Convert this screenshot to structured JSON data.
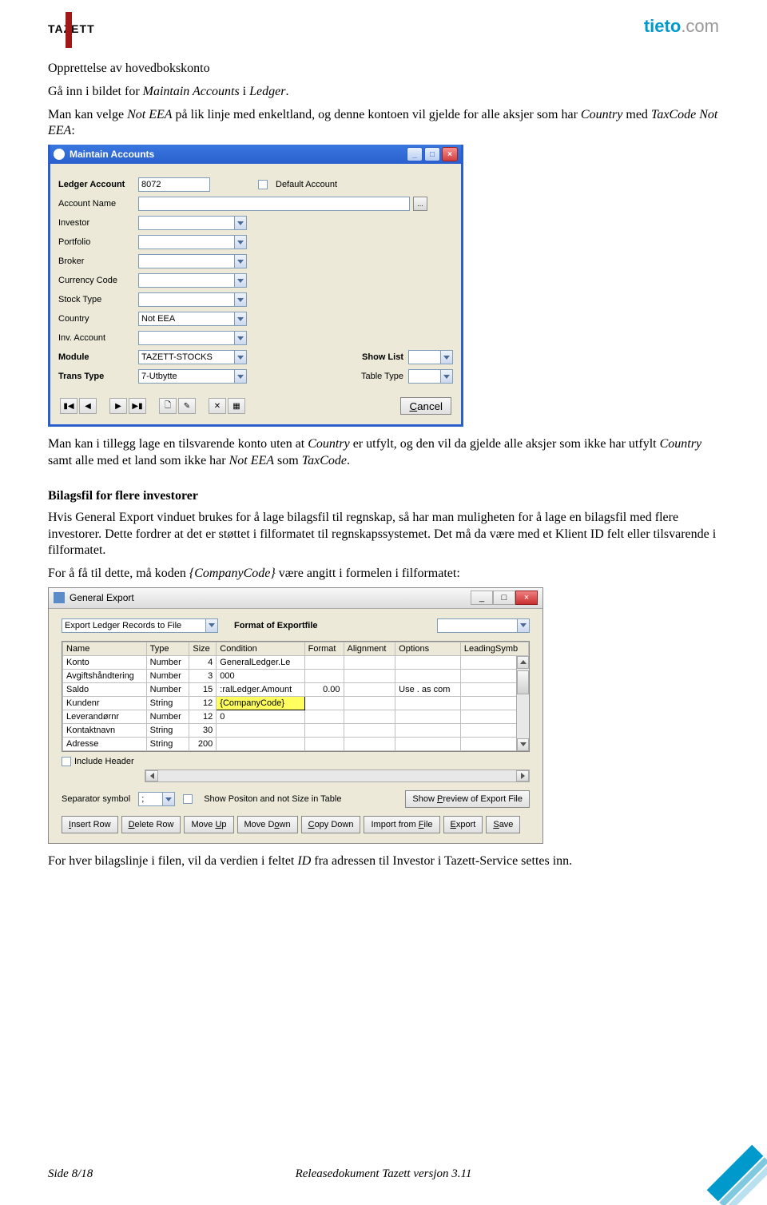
{
  "header": {
    "tazett": "TAZETT",
    "tieto_brand": "tieto",
    "tieto_suffix": ".com"
  },
  "text": {
    "h1": "Opprettelse av hovedbokskonto",
    "p1a": "Gå inn i bildet for ",
    "p1b": "Maintain Accounts",
    "p1c": " i ",
    "p1d": "Ledger",
    "p1e": ".",
    "p2a": "Man kan velge ",
    "p2b": "Not EEA",
    "p2c": " på lik linje med enkeltland, og denne kontoen vil gjelde for alle aksjer som har ",
    "p2d": "Country",
    "p2e": " med ",
    "p2f": "TaxCode Not EEA",
    "p2g": ":",
    "p3a": "Man kan i tillegg lage en tilsvarende konto uten at ",
    "p3b": "Country",
    "p3c": " er utfylt, og den vil da gjelde alle aksjer som ikke har utfylt ",
    "p3d": "Country",
    "p3e": " samt alle med et land som ikke har ",
    "p3f": "Not EEA",
    "p3g": " som ",
    "p3h": "TaxCode",
    "p3i": ".",
    "h2": "Bilagsfil for flere investorer",
    "p4": "Hvis General Export vinduet brukes for å lage bilagsfil til regnskap, så har man muligheten for å lage en bilagsfil med flere investorer. Dette fordrer at det er støttet i filformatet til regnskapssystemet. Det må da være med et Klient ID felt eller tilsvarende i filformatet.",
    "p5a": "For å få til dette, må koden ",
    "p5b": "{CompanyCode}",
    "p5c": " være angitt i formelen i filformatet:",
    "p6a": "For hver bilagslinje i filen, vil da verdien i feltet ",
    "p6b": "ID",
    "p6c": " fra adressen til Investor i Tazett-Service settes inn."
  },
  "win1": {
    "title": "Maintain Accounts",
    "labels": {
      "ledger_account": "Ledger Account",
      "account_name": "Account Name",
      "investor": "Investor",
      "portfolio": "Portfolio",
      "broker": "Broker",
      "currency_code": "Currency Code",
      "stock_type": "Stock Type",
      "country": "Country",
      "inv_account": "Inv. Account",
      "module": "Module",
      "trans_type": "Trans Type",
      "default_account": "Default Account",
      "show_list": "Show List",
      "table_type": "Table Type",
      "cancel": "Cancel"
    },
    "values": {
      "ledger_account": "8072",
      "country": "Not EEA",
      "module": "TAZETT-STOCKS",
      "trans_type": "7-Utbytte"
    }
  },
  "win2": {
    "title": "General Export",
    "top": {
      "export_ledger": "Export Ledger Records to File",
      "format_label": "Format of Exportfile"
    },
    "columns": [
      "Name",
      "Type",
      "Size",
      "Condition",
      "Format",
      "Alignment",
      "Options",
      "LeadingSymb"
    ],
    "rows": [
      {
        "name": "Konto",
        "type": "Number",
        "size": "4",
        "cond": "GeneralLedger.Le",
        "fmt": "",
        "align": "",
        "opt": "",
        "lead": ""
      },
      {
        "name": "Avgiftshåndtering",
        "type": "Number",
        "size": "3",
        "cond": "000",
        "fmt": "",
        "align": "",
        "opt": "",
        "lead": ""
      },
      {
        "name": "Saldo",
        "type": "Number",
        "size": "15",
        "cond": ":ralLedger.Amount",
        "fmt": "0.00",
        "align": "",
        "opt": "Use . as com",
        "lead": ""
      },
      {
        "name": "Kundenr",
        "type": "String",
        "size": "12",
        "cond": "{CompanyCode}",
        "fmt": "",
        "align": "",
        "opt": "",
        "lead": "",
        "hl": true
      },
      {
        "name": "Leverandørnr",
        "type": "Number",
        "size": "12",
        "cond": "0",
        "fmt": "",
        "align": "",
        "opt": "",
        "lead": ""
      },
      {
        "name": "Kontaktnavn",
        "type": "String",
        "size": "30",
        "cond": "",
        "fmt": "",
        "align": "",
        "opt": "",
        "lead": ""
      },
      {
        "name": "Adresse",
        "type": "String",
        "size": "200",
        "cond": "",
        "fmt": "",
        "align": "",
        "opt": "",
        "lead": ""
      }
    ],
    "include_header": "Include Header",
    "separator_label": "Separator symbol",
    "separator_value": ";",
    "show_position": "Show Positon and not Size in Table",
    "preview_btn": "Show Preview of Export File",
    "buttons": {
      "insert": "Insert Row",
      "delete": "Delete Row",
      "moveup": "Move Up",
      "movedown": "Move Down",
      "copydown": "Copy Down",
      "import": "Import from File",
      "export": "Export",
      "save": "Save"
    }
  },
  "footer": {
    "left": "Side 8/18",
    "center": "Releasedokument Tazett versjon 3.11"
  }
}
